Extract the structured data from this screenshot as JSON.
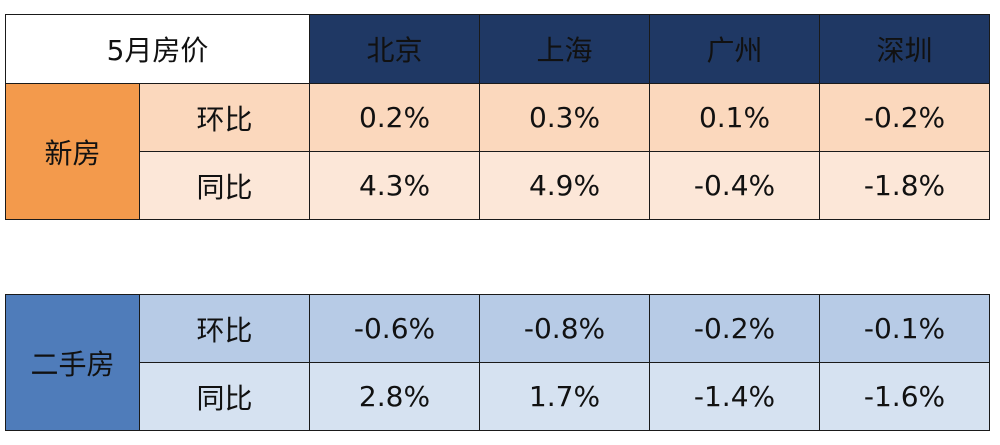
{
  "chart_data": {
    "type": "table",
    "title": "5月房价",
    "cities": [
      "北京",
      "上海",
      "广州",
      "深圳"
    ],
    "sections": [
      {
        "name": "新房",
        "rows": [
          {
            "metric": "环比",
            "values": [
              "0.2%",
              "0.3%",
              "0.1%",
              "-0.2%"
            ]
          },
          {
            "metric": "同比",
            "values": [
              "4.3%",
              "4.9%",
              "-0.4%",
              "-1.8%"
            ]
          }
        ]
      },
      {
        "name": "二手房",
        "rows": [
          {
            "metric": "环比",
            "values": [
              "-0.6%",
              "-0.8%",
              "-0.2%",
              "-0.1%"
            ]
          },
          {
            "metric": "同比",
            "values": [
              "2.8%",
              "1.7%",
              "-1.4%",
              "-1.6%"
            ]
          }
        ]
      }
    ]
  },
  "colors": {
    "header_city_bg": "#1f3864",
    "new_category_bg": "#f39a4c",
    "new_row1_bg": "#fbd8bd",
    "new_row2_bg": "#fce7d8",
    "old_category_bg": "#4f7cba",
    "old_row1_bg": "#b7cbe6",
    "old_row2_bg": "#d6e2f1"
  }
}
